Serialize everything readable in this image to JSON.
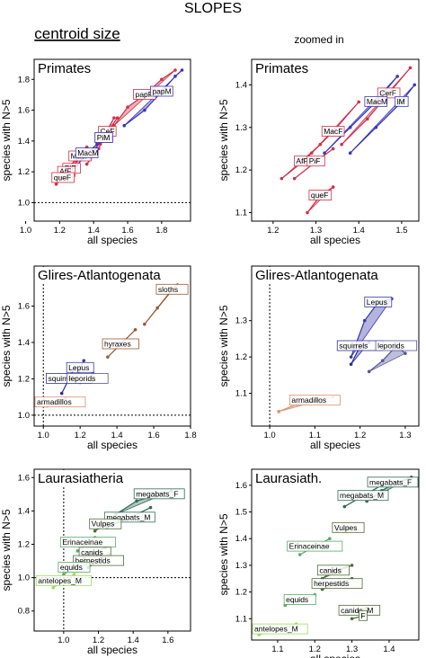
{
  "figure": {
    "title": "SLOPES",
    "left_column_label": "centroid size",
    "right_column_label": "zoomed in",
    "colors": {
      "primates_red": "#d0304a",
      "primates_blue": "#3a36b8",
      "glires_blue": "#2f2f9a",
      "glires_lepus": "#3a3aa8",
      "glires_leporids": "#55559c",
      "glires_brown": "#9a5a32",
      "glires_armadillo": "#d89070",
      "laura_dark": "#2f6a58",
      "laura_mid": "#5aa868",
      "laura_light": "#9cdc5c",
      "laura_olive": "#4e6a38",
      "ref_line": "#000000",
      "frame": "#000000"
    }
  },
  "chart_data": [
    {
      "type": "scatter",
      "panel_id": "primates-full",
      "title": "Primates",
      "xlabel": "all species",
      "ylabel": "species with N>5",
      "xlim": [
        1.05,
        1.97
      ],
      "ylim": [
        0.88,
        1.93
      ],
      "xticks": [
        "1.0",
        "1.2",
        "1.4",
        "1.6",
        "1.8"
      ],
      "yticks": [
        "1.0",
        "1.2",
        "1.4",
        "1.6",
        "1.8"
      ],
      "reference_lines": {
        "x": 1.0,
        "y": 1.0
      },
      "series": [
        {
          "name": "CeM",
          "color": "#d0304a",
          "x": [
            1.36,
            1.43,
            1.46,
            1.52
          ],
          "y": [
            1.25,
            1.35,
            1.42,
            1.55
          ]
        },
        {
          "name": "papF",
          "color": "#d0304a",
          "x": [
            1.52,
            1.6,
            1.7,
            1.8,
            1.88
          ],
          "y": [
            1.5,
            1.62,
            1.7,
            1.8,
            1.86
          ]
        },
        {
          "name": "papM",
          "color": "#3a36b8",
          "x": [
            1.58,
            1.7,
            1.8,
            1.88,
            1.92
          ],
          "y": [
            1.5,
            1.6,
            1.72,
            1.82,
            1.86
          ]
        },
        {
          "name": "CeF",
          "color": "#d0304a",
          "x": [
            1.44,
            1.48,
            1.54
          ],
          "y": [
            1.38,
            1.46,
            1.55
          ]
        },
        {
          "name": "PiM",
          "color": "#3a36b8",
          "x": [
            1.4,
            1.46,
            1.5
          ],
          "y": [
            1.34,
            1.42,
            1.48
          ]
        },
        {
          "name": "MacF",
          "color": "#d0304a",
          "x": [
            1.26,
            1.32,
            1.36
          ],
          "y": [
            1.24,
            1.3,
            1.36
          ]
        },
        {
          "name": "MacM",
          "color": "#3a36b8",
          "x": [
            1.3,
            1.36,
            1.42
          ],
          "y": [
            1.24,
            1.32,
            1.38
          ]
        },
        {
          "name": "PiF",
          "color": "#d0304a",
          "x": [
            1.22,
            1.27,
            1.3
          ],
          "y": [
            1.16,
            1.22,
            1.27
          ]
        },
        {
          "name": "AfF",
          "color": "#d0304a",
          "x": [
            1.2,
            1.24,
            1.27
          ],
          "y": [
            1.16,
            1.2,
            1.24
          ]
        },
        {
          "name": "queF",
          "color": "#d0304a",
          "x": [
            1.18,
            1.22,
            1.25
          ],
          "y": [
            1.12,
            1.16,
            1.2
          ]
        }
      ]
    },
    {
      "type": "scatter",
      "panel_id": "primates-zoom",
      "title": "Primates",
      "xlabel": "all species",
      "ylabel": "species with N>5",
      "xlim": [
        1.15,
        1.54
      ],
      "ylim": [
        1.08,
        1.46
      ],
      "xticks": [
        "1.2",
        "1.3",
        "1.4",
        "1.5"
      ],
      "yticks": [
        "1.1",
        "1.2",
        "1.3",
        "1.4"
      ],
      "series": [
        {
          "name": "CerF",
          "color": "#d0304a",
          "x": [
            1.36,
            1.42,
            1.47,
            1.52
          ],
          "y": [
            1.26,
            1.32,
            1.38,
            1.44
          ]
        },
        {
          "name": "MacF",
          "color": "#d0304a",
          "x": [
            1.29,
            1.34,
            1.4
          ],
          "y": [
            1.24,
            1.29,
            1.36
          ]
        },
        {
          "name": "MacM",
          "color": "#3a36b8",
          "x": [
            1.32,
            1.38,
            1.44,
            1.49
          ],
          "y": [
            1.24,
            1.3,
            1.36,
            1.42
          ]
        },
        {
          "name": "lM",
          "color": "#3a36b8",
          "x": [
            1.38,
            1.44,
            1.5,
            1.53
          ],
          "y": [
            1.24,
            1.3,
            1.36,
            1.4
          ]
        },
        {
          "name": "AfF",
          "color": "#d0304a",
          "x": [
            1.22,
            1.27,
            1.31
          ],
          "y": [
            1.18,
            1.22,
            1.26
          ]
        },
        {
          "name": "PiF",
          "color": "#d0304a",
          "x": [
            1.25,
            1.3,
            1.34
          ],
          "y": [
            1.18,
            1.22,
            1.25
          ]
        },
        {
          "name": "queF",
          "color": "#d0304a",
          "x": [
            1.28,
            1.31,
            1.34
          ],
          "y": [
            1.1,
            1.14,
            1.16
          ]
        }
      ]
    },
    {
      "type": "scatter",
      "panel_id": "glires-full",
      "title": "Glires-Atlantogenata",
      "xlabel": "all species",
      "ylabel": "species with N>5",
      "xlim": [
        0.95,
        1.8
      ],
      "ylim": [
        0.94,
        1.82
      ],
      "xticks": [
        "1.0",
        "1.2",
        "1.4",
        "1.6",
        "1.8"
      ],
      "yticks": [
        "1.0",
        "1.2",
        "1.4",
        "1.6"
      ],
      "reference_lines": {
        "x": 1.0,
        "y": 1.0
      },
      "series": [
        {
          "name": "sloths",
          "color": "#9a5a32",
          "x": [
            1.55,
            1.62,
            1.7,
            1.76
          ],
          "y": [
            1.5,
            1.59,
            1.69,
            1.76
          ]
        },
        {
          "name": "hyraxes",
          "color": "#9a5a32",
          "x": [
            1.35,
            1.42,
            1.5
          ],
          "y": [
            1.32,
            1.39,
            1.47
          ]
        },
        {
          "name": "squirrels",
          "color": "#2f2f9a",
          "x": [
            1.1,
            1.14,
            1.17
          ],
          "y": [
            1.12,
            1.2,
            1.26
          ]
        },
        {
          "name": "Lepus",
          "color": "#3a3aa8",
          "x": [
            1.18,
            1.2,
            1.22
          ],
          "y": [
            1.2,
            1.26,
            1.3
          ]
        },
        {
          "name": "leporids",
          "color": "#55559c",
          "x": [
            1.2,
            1.24,
            1.27
          ],
          "y": [
            1.18,
            1.2,
            1.23
          ]
        },
        {
          "name": "armadillos",
          "color": "#d89070",
          "x": [
            1.02,
            1.07,
            1.12
          ],
          "y": [
            1.05,
            1.07,
            1.09
          ]
        }
      ]
    },
    {
      "type": "scatter",
      "panel_id": "glires-zoom",
      "title": "Glires-Atlantogenata",
      "xlabel": "all species",
      "ylabel": "species with N>5",
      "xlim": [
        0.96,
        1.33
      ],
      "ylim": [
        1.01,
        1.45
      ],
      "xticks": [
        "1.0",
        "1.1",
        "1.2",
        "1.3"
      ],
      "yticks": [
        "1.0",
        "1.1",
        "1.2",
        "1.3"
      ],
      "reference_lines": {
        "x": 1.0,
        "y": 1.0
      },
      "series": [
        {
          "name": "Lepus",
          "color": "#3a3aa8",
          "x": [
            1.18,
            1.21,
            1.24,
            1.27
          ],
          "y": [
            1.2,
            1.3,
            1.35,
            1.36
          ]
        },
        {
          "name": "squirrels",
          "color": "#2f2f9a",
          "x": [
            1.18,
            1.2,
            1.22
          ],
          "y": [
            1.18,
            1.23,
            1.24
          ]
        },
        {
          "name": "leporids",
          "color": "#55559c",
          "x": [
            1.22,
            1.25,
            1.28,
            1.3
          ],
          "y": [
            1.16,
            1.19,
            1.23,
            1.21
          ]
        },
        {
          "name": "armadillos",
          "color": "#d89070",
          "x": [
            1.02,
            1.06,
            1.1,
            1.14
          ],
          "y": [
            1.05,
            1.07,
            1.08,
            1.09
          ]
        }
      ]
    },
    {
      "type": "scatter",
      "panel_id": "laurasiatheria-full",
      "title": "Laurasiatheria",
      "xlabel": "all species",
      "ylabel": "species with N>5",
      "xlim": [
        0.83,
        1.73
      ],
      "ylim": [
        0.68,
        1.65
      ],
      "xticks": [
        "1.0",
        "1.2",
        "1.4",
        "1.6"
      ],
      "yticks": [
        "0.8",
        "1.0",
        "1.2",
        "1.4",
        "1.6"
      ],
      "reference_lines": {
        "x": 1.0,
        "y": 1.0
      },
      "series": [
        {
          "name": "megabats_F",
          "color": "#2f6a58",
          "x": [
            1.3,
            1.42,
            1.55,
            1.62
          ],
          "y": [
            1.38,
            1.46,
            1.5,
            1.52
          ]
        },
        {
          "name": "megabats_M",
          "color": "#2f6a58",
          "x": [
            1.25,
            1.38,
            1.5
          ],
          "y": [
            1.3,
            1.36,
            1.42
          ]
        },
        {
          "name": "Vulpes",
          "color": "#4e6a38",
          "x": [
            1.18,
            1.24
          ],
          "y": [
            1.28,
            1.32
          ]
        },
        {
          "name": "Erinaceinae",
          "color": "#5aa868",
          "x": [
            1.08,
            1.14,
            1.18
          ],
          "y": [
            1.16,
            1.21,
            1.24
          ]
        },
        {
          "name": "canids",
          "color": "#4e6a38",
          "x": [
            1.12,
            1.18,
            1.24
          ],
          "y": [
            1.12,
            1.15,
            1.18
          ]
        },
        {
          "name": "herpestids",
          "color": "#4e6a38",
          "x": [
            1.14,
            1.2,
            1.26
          ],
          "y": [
            1.06,
            1.1,
            1.14
          ]
        },
        {
          "name": "equids",
          "color": "#5aa868",
          "x": [
            1.0,
            1.06,
            1.12
          ],
          "y": [
            1.02,
            1.06,
            1.1
          ]
        },
        {
          "name": "antelopes_M",
          "color": "#9cdc5c",
          "x": [
            0.94,
            1.0,
            1.06
          ],
          "y": [
            0.94,
            0.98,
            1.02
          ]
        }
      ]
    },
    {
      "type": "scatter",
      "panel_id": "laurasiatheria-zoom",
      "title": "Laurasiath.",
      "xlabel": "all species",
      "ylabel": "species with N>5",
      "xlim": [
        1.03,
        1.48
      ],
      "ylim": [
        1.02,
        1.66
      ],
      "xticks": [
        "1.1",
        "1.2",
        "1.3",
        "1.4"
      ],
      "yticks": [
        "1.1",
        "1.2",
        "1.3",
        "1.4",
        "1.5",
        "1.6"
      ],
      "series": [
        {
          "name": "megabats_F",
          "color": "#2f6a58",
          "x": [
            1.34,
            1.38,
            1.42,
            1.46
          ],
          "y": [
            1.54,
            1.58,
            1.61,
            1.63
          ]
        },
        {
          "name": "megabats_M",
          "color": "#2f6a58",
          "x": [
            1.28,
            1.33,
            1.38
          ],
          "y": [
            1.52,
            1.56,
            1.6
          ]
        },
        {
          "name": "Vulpes",
          "color": "#4e6a38",
          "x": [
            1.26,
            1.29
          ],
          "y": [
            1.43,
            1.44
          ]
        },
        {
          "name": "Erinaceinae",
          "color": "#5aa868",
          "x": [
            1.16,
            1.2,
            1.24
          ],
          "y": [
            1.34,
            1.37,
            1.4
          ]
        },
        {
          "name": "canids",
          "color": "#4e6a38",
          "x": [
            1.22,
            1.25,
            1.3
          ],
          "y": [
            1.25,
            1.28,
            1.3
          ]
        },
        {
          "name": "herpestids",
          "color": "#4e6a38",
          "x": [
            1.22,
            1.26,
            1.3
          ],
          "y": [
            1.21,
            1.23,
            1.25
          ]
        },
        {
          "name": "equids",
          "color": "#5aa868",
          "x": [
            1.12,
            1.16,
            1.2
          ],
          "y": [
            1.15,
            1.17,
            1.19
          ]
        },
        {
          "name": "canids_M",
          "color": "#4e6a38",
          "x": [
            1.28,
            1.32,
            1.34
          ],
          "y": [
            1.12,
            1.13,
            1.14
          ]
        },
        {
          "name": "F",
          "color": "#4e6a38",
          "x": [
            1.3,
            1.33
          ],
          "y": [
            1.1,
            1.11
          ]
        },
        {
          "name": "antelopes_M",
          "color": "#9cdc5c",
          "x": [
            1.05,
            1.1,
            1.15
          ],
          "y": [
            1.04,
            1.06,
            1.08
          ]
        }
      ]
    }
  ],
  "labels": {
    "primates-full": [
      "CeM",
      "papF",
      "papM",
      "CeF",
      "PiM",
      "MacF",
      "MacM",
      "PiF",
      "AfF",
      "queF"
    ],
    "primates-zoom": [
      "CerF",
      "MacF",
      "MacM",
      "lM",
      "AfF",
      "PiF",
      "queF"
    ],
    "glires-full": [
      "sloths",
      "hyraxes",
      "squirrels",
      "Lepus",
      "leporids",
      "armadillos"
    ],
    "glires-zoom": [
      "Lepus",
      "squirrels",
      "leporids",
      "armadillos"
    ],
    "laurasiatheria-full": [
      "megabats_F",
      "megabats_M",
      "Vulpes",
      "Erinaceinae",
      "canids",
      "herpestids",
      "equids",
      "antelopes_M"
    ],
    "laurasiatheria-zoom": [
      "megabats_F",
      "megabats_M",
      "Vulpes",
      "Erinaceinae",
      "canids",
      "herpestids",
      "equids",
      "canids_M",
      "F",
      "antelopes_M"
    ]
  }
}
